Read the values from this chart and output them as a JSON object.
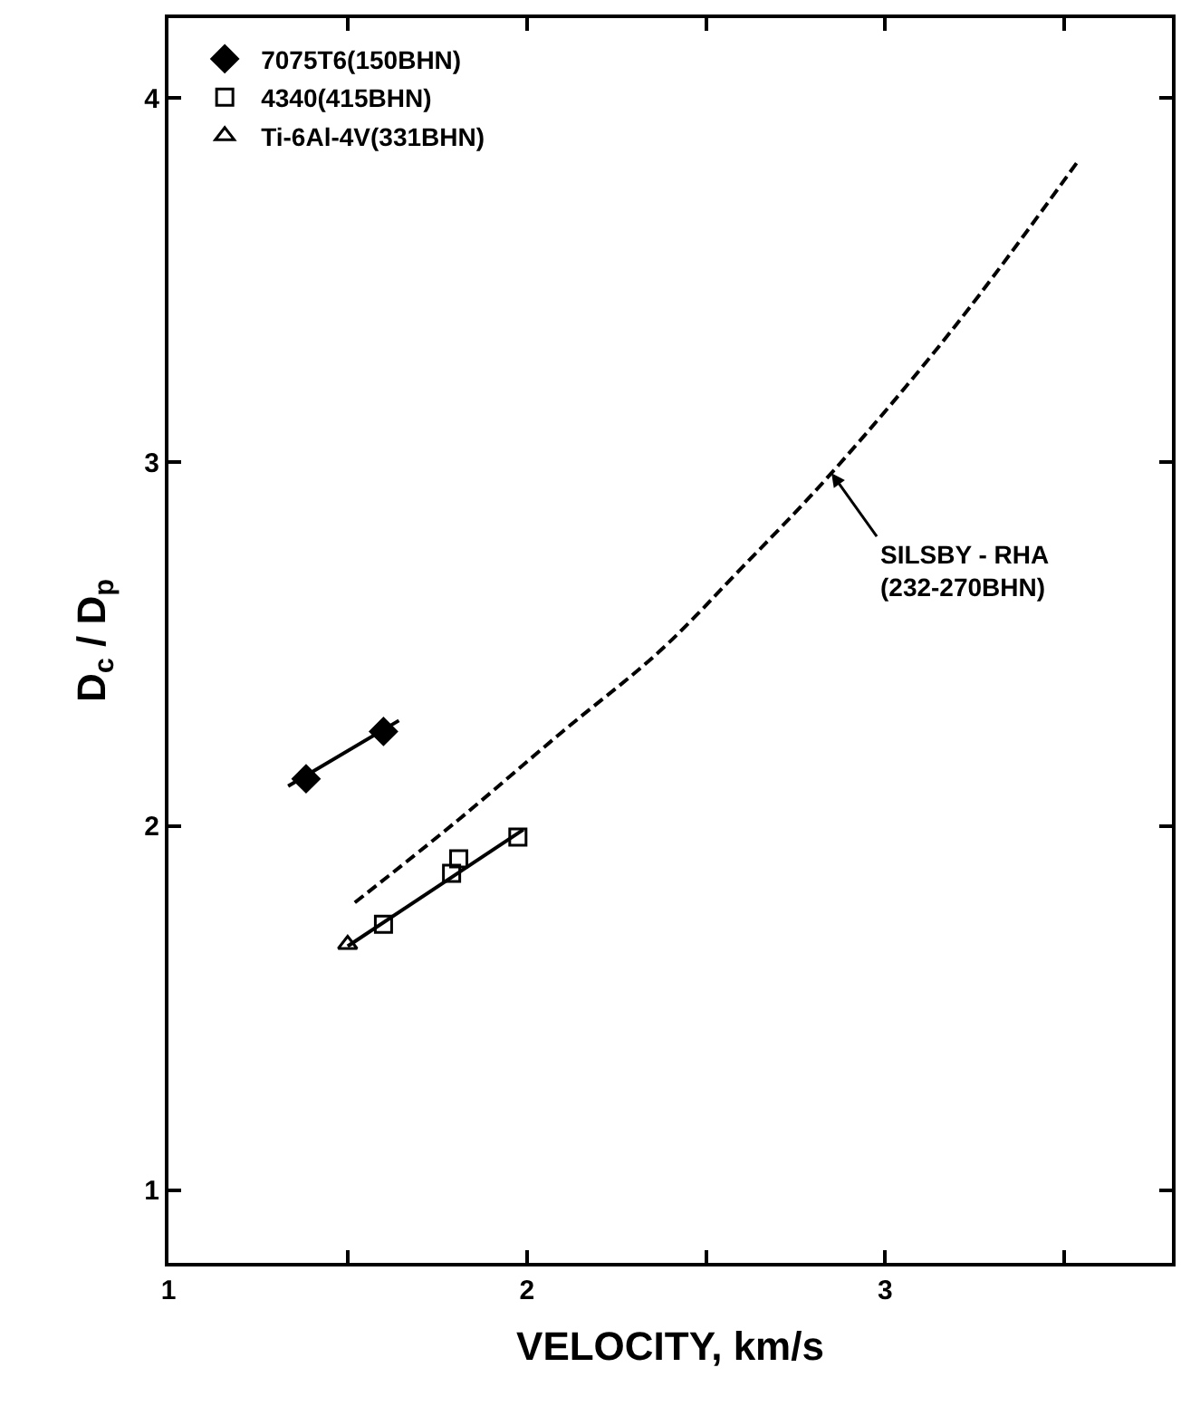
{
  "chart_data": {
    "type": "scatter",
    "xlabel": "VELOCITY, km/s",
    "ylabel": "D$_{c}$ / D$_{p}$",
    "xlim": [
      1,
      3.8
    ],
    "xticks": [
      1,
      {
        "value": 1.5,
        "label": null
      },
      2,
      {
        "value": 2.5,
        "label": null
      },
      3,
      {
        "value": 3.5,
        "label": null
      }
    ],
    "ylim": [
      0.8,
      4.22
    ],
    "yticks": [
      1,
      2,
      3,
      4
    ],
    "legend": "top left",
    "series": [
      {
        "name": "7075T6(150BHN)",
        "color": "#000000",
        "marker": "diamond",
        "x": [
          1.384,
          1.6
        ],
        "values": [
          2.13,
          2.26
        ]
      },
      {
        "name": "4340(415BHN)",
        "color": "#000000",
        "marker": "square",
        "x": [
          1.6,
          1.79,
          1.81,
          1.975
        ],
        "values": [
          1.73,
          1.87,
          1.91,
          1.97
        ]
      },
      {
        "name": "Ti-6Al-4V(331BHN)",
        "color": "#000000",
        "marker": "triangle",
        "x": [
          1.5
        ],
        "values": [
          1.675
        ]
      },
      {
        "type": "line",
        "color": "#000000",
        "line_style": "solid",
        "x": [
          1.334,
          1.643
        ],
        "values": [
          2.11,
          2.29
        ]
      },
      {
        "type": "line",
        "color": "#000000",
        "line_style": "solid",
        "x": [
          1.5,
          1.99
        ],
        "values": [
          1.67,
          1.99
        ]
      },
      {
        "type": "line",
        "color": "#000000",
        "line_style": "dashed",
        "x": [
          1.52,
          1.8,
          2.1,
          2.37,
          2.6,
          2.85,
          3.2,
          3.54
        ],
        "values": [
          1.79,
          2.01,
          2.26,
          2.48,
          2.71,
          2.97,
          3.38,
          3.83
        ]
      }
    ],
    "annotations": [
      {
        "text": "SILSBY - RHA\n(232-270BHN)",
        "x": 2.85,
        "y": 2.97
      }
    ]
  }
}
